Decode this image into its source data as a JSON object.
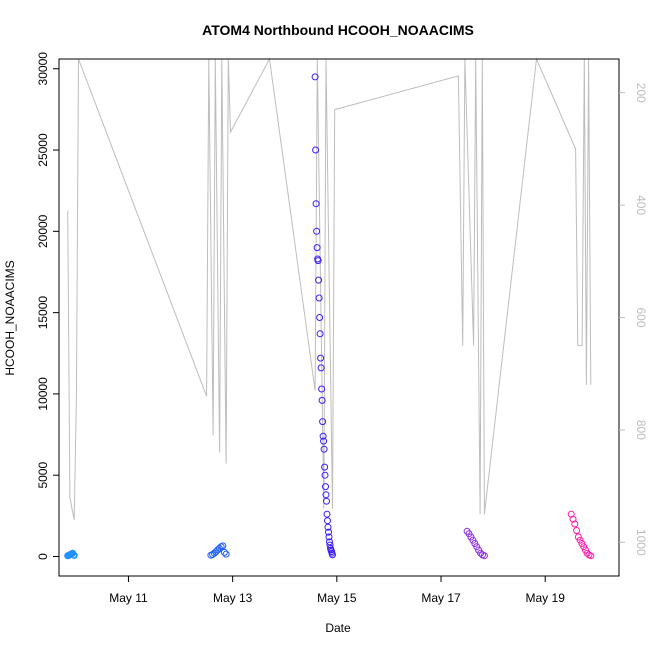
{
  "chart_data": {
    "type": "scatter",
    "title": "ATOM4 Northbound HCOOH_NOAACIMS",
    "xlabel": "Date",
    "ylabel": "HCOOH_NOAACIMS",
    "x_ticks": [
      "May 11",
      "May 13",
      "May 15",
      "May 17",
      "May 19"
    ],
    "y_ticks": [
      0,
      5000,
      10000,
      15000,
      20000,
      25000,
      30000
    ],
    "y2_ticks": [
      200,
      400,
      600,
      800,
      1000
    ],
    "xlim": [
      "2018-05-09T16:00",
      "2018-05-20T10:00"
    ],
    "ylim": [
      -1200,
      30600
    ],
    "y2lim": [
      1060,
      140
    ],
    "y2_note": "secondary axis is reversed (pressure-like)",
    "grid": false,
    "legend": "none",
    "colors": {
      "series_1": "#1e90ff",
      "series_2": "#1a5cff",
      "series_3": "#3a1eff",
      "series_4": "#8a2be2",
      "series_5": "#ff1aa8",
      "altitude_line": "#bdbdbd",
      "axis": "#000000",
      "right_axis": "#bdbdbd"
    },
    "series": [
      {
        "x_range": [
          "2018-05-09T20:00",
          "2018-05-09T23:00"
        ],
        "color": "#1e90ff",
        "values": [
          40,
          60,
          80,
          100,
          120,
          150,
          180,
          200,
          90,
          70
        ]
      },
      {
        "x_range": [
          "2018-05-12T14:00",
          "2018-05-12T21:00"
        ],
        "color": "#1a5cff",
        "values": [
          80,
          120,
          200,
          300,
          400,
          500,
          600,
          650,
          250,
          150
        ]
      },
      {
        "x_range": [
          "2018-05-14T14:00",
          "2018-05-14T22:00"
        ],
        "color": "#3a1eff",
        "values": [
          29500,
          25000,
          21700,
          20000,
          19000,
          18300,
          18200,
          17000,
          15900,
          14700,
          13700,
          12200,
          11600,
          10300,
          9600,
          8300,
          7400,
          7100,
          6600,
          5500,
          5000,
          4300,
          3800,
          3400,
          2600,
          2200,
          1800,
          1500,
          1200,
          900,
          700,
          500,
          400,
          300,
          200,
          100
        ]
      },
      {
        "x_range": [
          "2018-05-17T12:00",
          "2018-05-17T20:00"
        ],
        "color": "#8a2be2",
        "values": [
          1550,
          1400,
          1200,
          1000,
          800,
          600,
          400,
          200,
          100,
          50
        ]
      },
      {
        "x_range": [
          "2018-05-19T12:00",
          "2018-05-19T21:00"
        ],
        "color": "#ff1aa8",
        "values": [
          2600,
          2300,
          2000,
          1600,
          1200,
          1000,
          800,
          600,
          400,
          200,
          100,
          50
        ]
      }
    ],
    "altitude_line": [
      [
        "2018-05-09T20:00",
        410
      ],
      [
        "2018-05-09T21:00",
        920
      ],
      [
        "2018-05-09T22:00",
        940
      ],
      [
        "2018-05-09T23:00",
        960
      ],
      [
        "2018-05-10T00:00",
        740
      ],
      [
        "2018-05-10T01:00",
        40
      ],
      [
        "2018-05-12T12:00",
        740
      ],
      [
        "2018-05-12T13:00",
        40
      ],
      [
        "2018-05-12T15:00",
        810
      ],
      [
        "2018-05-12T16:00",
        40
      ],
      [
        "2018-05-12T18:00",
        840
      ],
      [
        "2018-05-12T19:00",
        40
      ],
      [
        "2018-05-12T21:00",
        860
      ],
      [
        "2018-05-12T22:00",
        40
      ],
      [
        "2018-05-12T23:00",
        270
      ],
      [
        "2018-05-13T17:00",
        50
      ],
      [
        "2018-05-14T14:00",
        730
      ],
      [
        "2018-05-14T15:00",
        40
      ],
      [
        "2018-05-14T18:00",
        940
      ],
      [
        "2018-05-14T19:00",
        40
      ],
      [
        "2018-05-14T22:00",
        940
      ],
      [
        "2018-05-14T23:00",
        230
      ],
      [
        "2018-05-17T08:00",
        170
      ],
      [
        "2018-05-17T10:00",
        650
      ],
      [
        "2018-05-17T11:00",
        40
      ],
      [
        "2018-05-17T15:00",
        650
      ],
      [
        "2018-05-17T16:00",
        40
      ],
      [
        "2018-05-17T18:00",
        950
      ],
      [
        "2018-05-17T19:00",
        40
      ],
      [
        "2018-05-17T20:00",
        950
      ],
      [
        "2018-05-18T20:00",
        40
      ],
      [
        "2018-05-19T14:00",
        300
      ],
      [
        "2018-05-19T15:00",
        650
      ],
      [
        "2018-05-19T17:00",
        650
      ],
      [
        "2018-05-19T18:00",
        40
      ],
      [
        "2018-05-19T19:00",
        720
      ],
      [
        "2018-05-19T20:00",
        40
      ],
      [
        "2018-05-19T21:00",
        720
      ]
    ]
  }
}
